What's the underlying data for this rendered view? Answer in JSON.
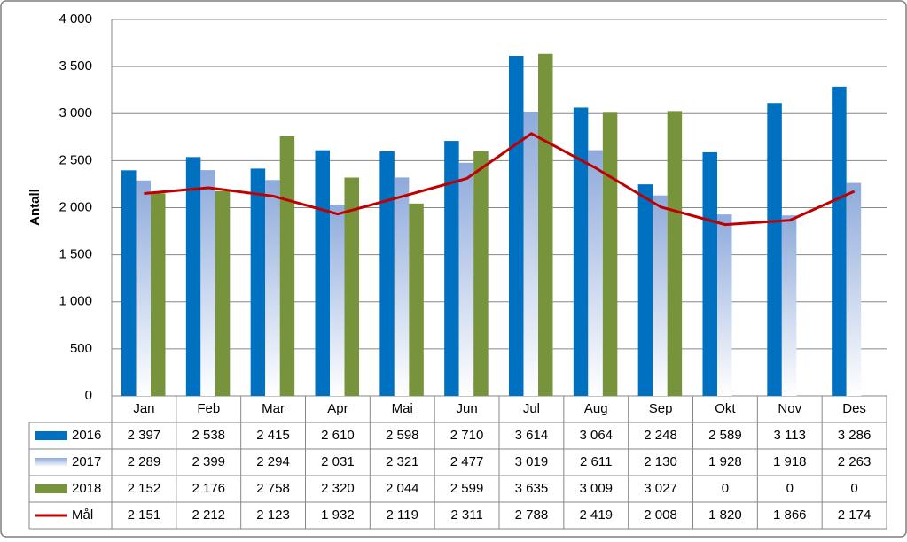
{
  "chart_data": {
    "type": "bar",
    "y_label": "Antall",
    "categories": [
      "Jan",
      "Feb",
      "Mar",
      "Apr",
      "Mai",
      "Jun",
      "Jul",
      "Aug",
      "Sep",
      "Okt",
      "Nov",
      "Des"
    ],
    "series": [
      {
        "name": "2016",
        "type": "bar",
        "color": "#0070c0",
        "values": [
          2397,
          2538,
          2415,
          2610,
          2598,
          2710,
          3614,
          3064,
          2248,
          2589,
          3113,
          3286
        ],
        "value_labels": [
          "2 397",
          "2 538",
          "2 415",
          "2 610",
          "2 598",
          "2 710",
          "3 614",
          "3 064",
          "2 248",
          "2 589",
          "3 113",
          "3 286"
        ]
      },
      {
        "name": "2017",
        "type": "bar",
        "color": "#8eaadb",
        "values": [
          2289,
          2399,
          2294,
          2031,
          2321,
          2477,
          3019,
          2611,
          2130,
          1928,
          1918,
          2263
        ],
        "value_labels": [
          "2 289",
          "2 399",
          "2 294",
          "2 031",
          "2 321",
          "2 477",
          "3 019",
          "2 611",
          "2 130",
          "1 928",
          "1 918",
          "2 263"
        ]
      },
      {
        "name": "2018",
        "type": "bar",
        "color": "#77933c",
        "values": [
          2152,
          2176,
          2758,
          2320,
          2044,
          2599,
          3635,
          3009,
          3027,
          0,
          0,
          0
        ],
        "value_labels": [
          "2 152",
          "2 176",
          "2 758",
          "2 320",
          "2 044",
          "2 599",
          "3 635",
          "3 009",
          "3 027",
          "0",
          "0",
          "0"
        ]
      },
      {
        "name": "Mål",
        "type": "line",
        "color": "#c00000",
        "values": [
          2151,
          2212,
          2123,
          1932,
          2119,
          2311,
          2788,
          2419,
          2008,
          1820,
          1866,
          2174
        ],
        "value_labels": [
          "2 151",
          "2 212",
          "2 123",
          "1 932",
          "2 119",
          "2 311",
          "2 788",
          "2 419",
          "2 008",
          "1 820",
          "1 866",
          "2 174"
        ]
      }
    ],
    "ylim": [
      0,
      4000
    ],
    "yticks": [
      0,
      500,
      {
        "value": 1000,
        "label": "1 000"
      },
      {
        "value": 1500,
        "label": "1 500"
      },
      {
        "value": 2000,
        "label": "2 000"
      },
      {
        "value": 2500,
        "label": "2 500"
      },
      {
        "value": 3000,
        "label": "3 000"
      },
      {
        "value": 3500,
        "label": "3 500"
      },
      {
        "value": 4000,
        "label": "4 000"
      }
    ],
    "grid": true
  }
}
